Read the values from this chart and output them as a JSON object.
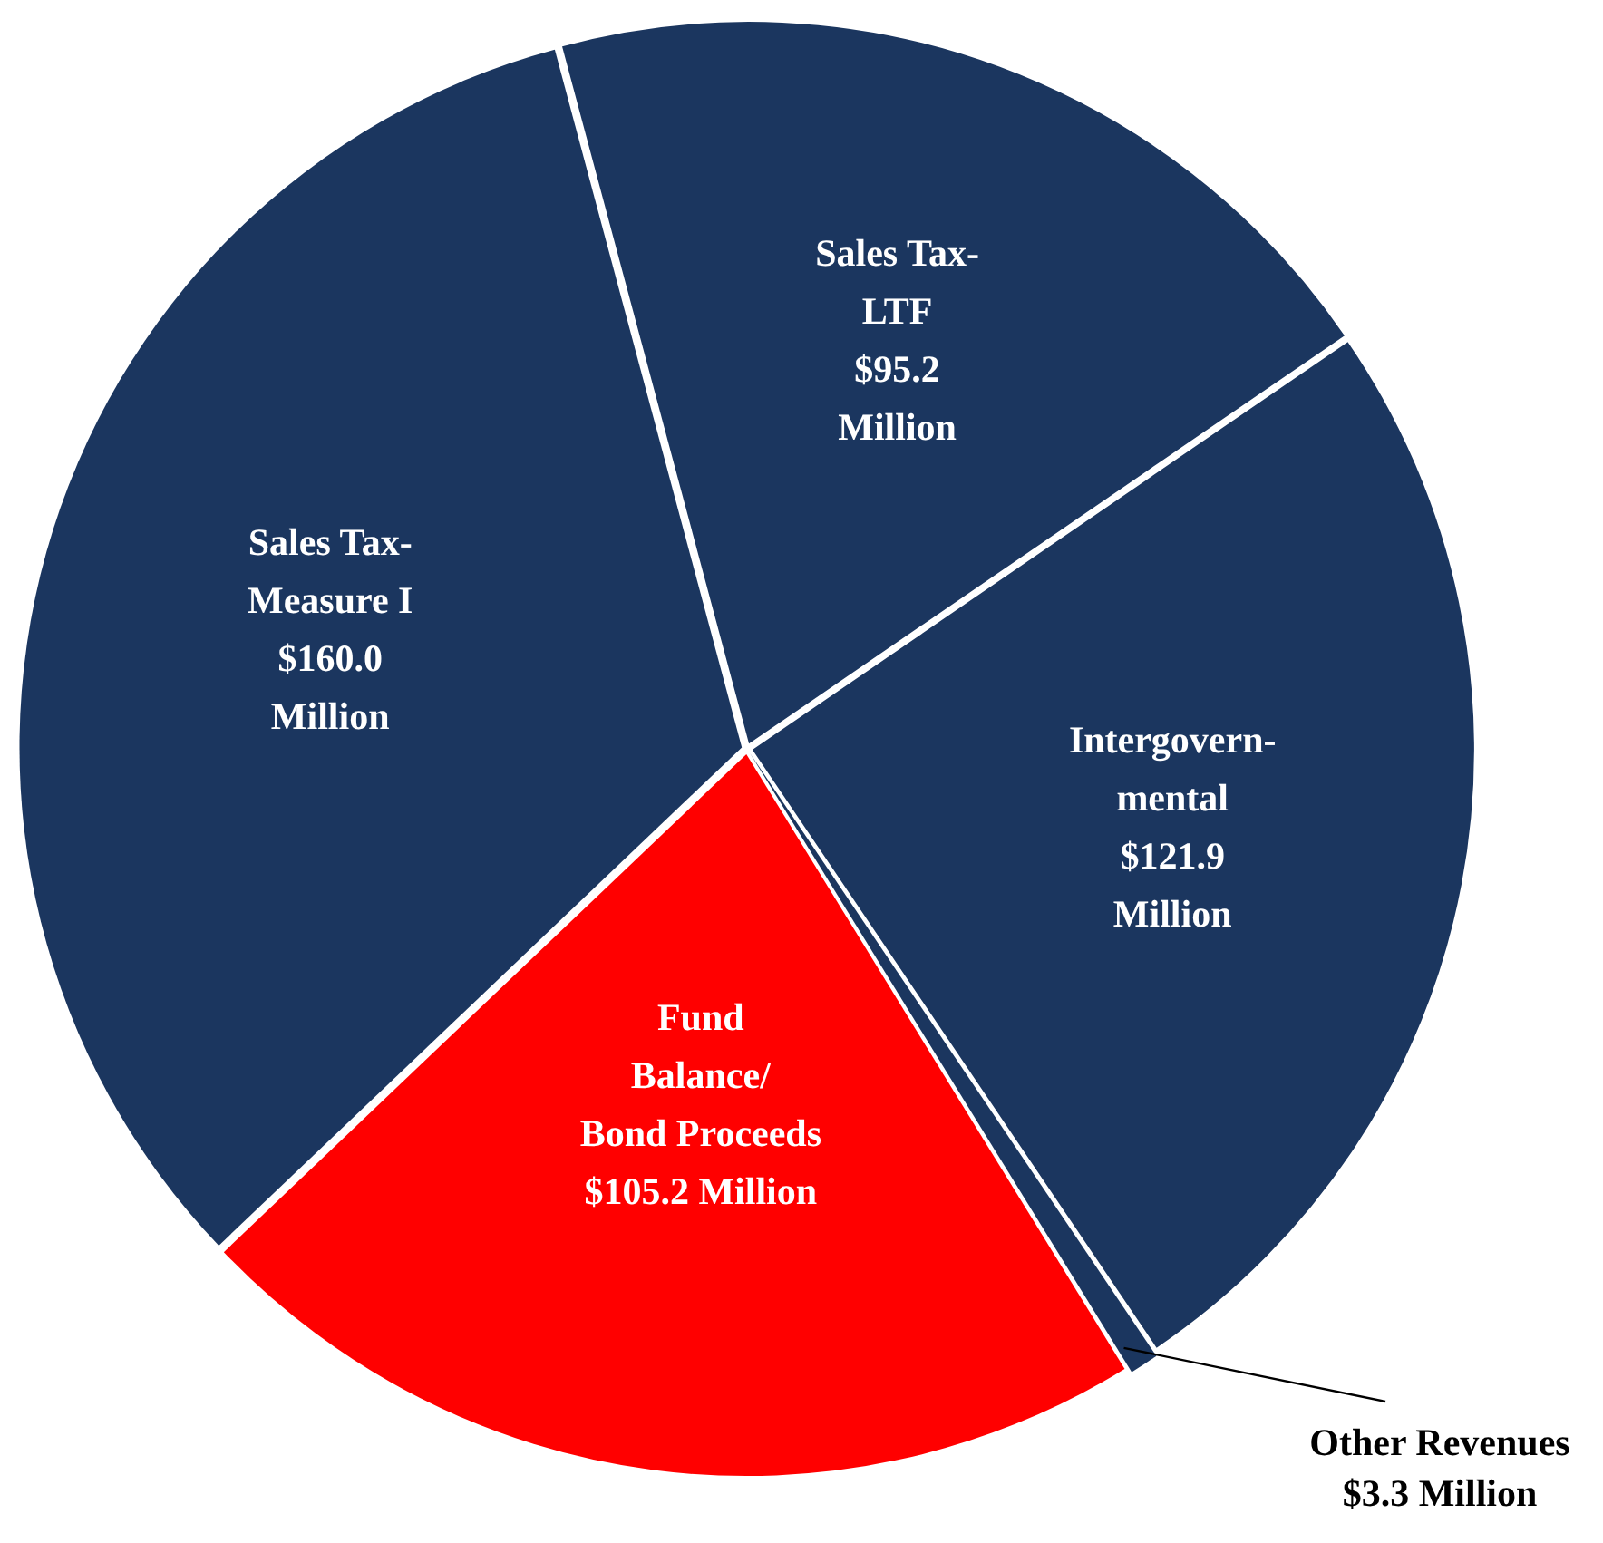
{
  "chart_data": {
    "type": "pie",
    "categories": [
      "Sales Tax-\nLTF",
      "Intergovern-\nmental",
      "Other Revenues",
      "Fund\nBalance/\nBond Proceeds",
      "Sales Tax-\nMeasure I"
    ],
    "values": [
      95.2,
      121.9,
      3.3,
      105.2,
      160.0
    ],
    "value_labels": [
      "$95.2\nMillion",
      "$121.9\nMillion",
      "$3.3 Million",
      "$105.2 Million",
      "$160.0\nMillion"
    ],
    "colors": [
      "#1b365f",
      "#1b365f",
      "#1b365f",
      "#ff0000",
      "#1b365f"
    ],
    "legend": false
  }
}
